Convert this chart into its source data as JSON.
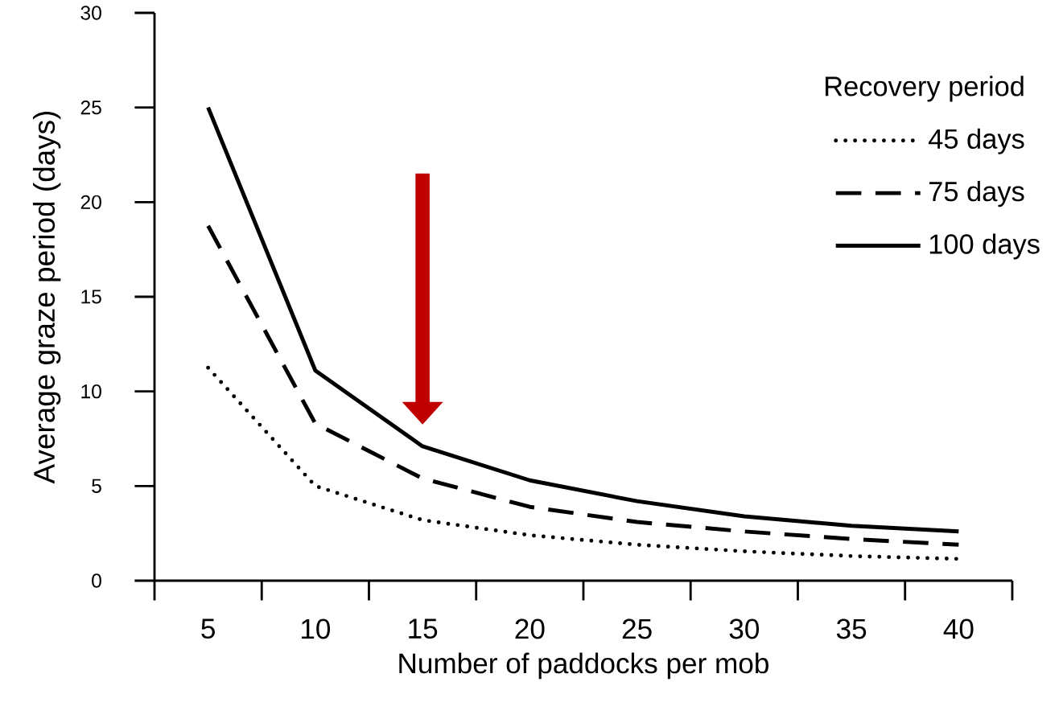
{
  "chart_data": {
    "type": "line",
    "xlabel": "Number of paddocks per mob",
    "ylabel": "Average graze period (days)",
    "legend_title": "Recovery period",
    "categories": [
      "5",
      "10",
      "15",
      "20",
      "25",
      "30",
      "35",
      "40"
    ],
    "series": [
      {
        "name": "45 days",
        "color": "#000000",
        "line_style": "dotted",
        "values": [
          11.25,
          5.0,
          3.2,
          2.4,
          1.9,
          1.55,
          1.3,
          1.15
        ]
      },
      {
        "name": "75 days",
        "color": "#000000",
        "line_style": "dashed",
        "values": [
          18.75,
          8.3,
          5.4,
          3.9,
          3.1,
          2.6,
          2.2,
          1.9
        ]
      },
      {
        "name": "100 days",
        "color": "#000000",
        "line_style": "solid",
        "values": [
          25.0,
          11.1,
          7.1,
          5.3,
          4.2,
          3.4,
          2.9,
          2.6
        ]
      }
    ],
    "ylim": [
      0,
      30
    ],
    "yticks": [
      0,
      5,
      10,
      15,
      20,
      25,
      30
    ],
    "grid": false,
    "legend": "top right"
  }
}
